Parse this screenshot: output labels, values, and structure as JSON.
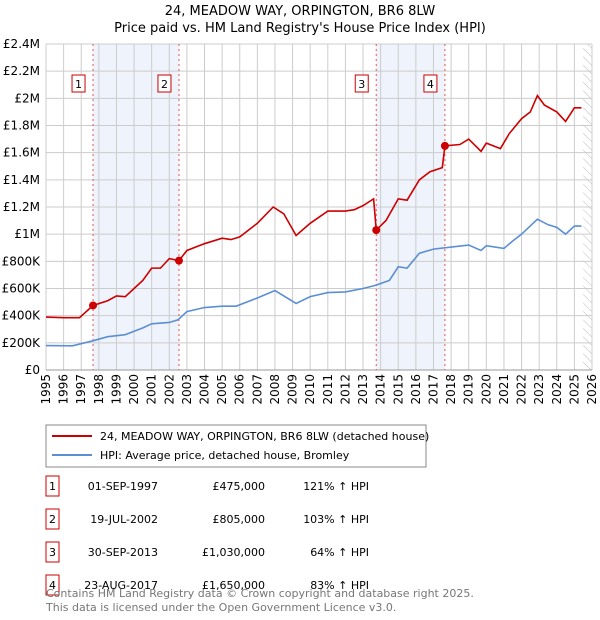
{
  "chart_data": {
    "type": "line",
    "title": "24, MEADOW WAY, ORPINGTON, BR6 8LW",
    "subtitle": "Price paid vs. HM Land Registry's House Price Index (HPI)",
    "xlim": [
      1995,
      2026
    ],
    "ylim": [
      0,
      2400000
    ],
    "x_ticks": [
      "1995",
      "1996",
      "1997",
      "1998",
      "1999",
      "2000",
      "2001",
      "2002",
      "2003",
      "2004",
      "2005",
      "2006",
      "2007",
      "2008",
      "2009",
      "2010",
      "2011",
      "2012",
      "2013",
      "2014",
      "2015",
      "2016",
      "2017",
      "2018",
      "2019",
      "2020",
      "2021",
      "2022",
      "2023",
      "2024",
      "2025",
      "2026"
    ],
    "y_ticks": [
      {
        "v": 0,
        "label": "£0"
      },
      {
        "v": 200000,
        "label": "£200K"
      },
      {
        "v": 400000,
        "label": "£400K"
      },
      {
        "v": 600000,
        "label": "£600K"
      },
      {
        "v": 800000,
        "label": "£800K"
      },
      {
        "v": 1000000,
        "label": "£1M"
      },
      {
        "v": 1200000,
        "label": "£1.2M"
      },
      {
        "v": 1400000,
        "label": "£1.4M"
      },
      {
        "v": 1600000,
        "label": "£1.6M"
      },
      {
        "v": 1800000,
        "label": "£1.8M"
      },
      {
        "v": 2000000,
        "label": "£2M"
      },
      {
        "v": 2200000,
        "label": "£2.2M"
      },
      {
        "v": 2400000,
        "label": "£2.4M"
      }
    ],
    "grid": true,
    "forecast_start": 2025.5,
    "shaded_ranges": [
      [
        1997.67,
        2002.55
      ],
      [
        2013.75,
        2017.65
      ]
    ],
    "series": [
      {
        "name": "24, MEADOW WAY, ORPINGTON, BR6 8LW (detached house)",
        "color": "#cc0000",
        "points": [
          [
            1995,
            390000
          ],
          [
            1996,
            385000
          ],
          [
            1996.9,
            385000
          ],
          [
            1997.67,
            475000
          ],
          [
            1998.5,
            510000
          ],
          [
            1999,
            545000
          ],
          [
            1999.5,
            540000
          ],
          [
            2000,
            600000
          ],
          [
            2000.5,
            660000
          ],
          [
            2001,
            750000
          ],
          [
            2001.5,
            750000
          ],
          [
            2002,
            820000
          ],
          [
            2002.55,
            805000
          ],
          [
            2003,
            880000
          ],
          [
            2004,
            930000
          ],
          [
            2005,
            970000
          ],
          [
            2005.5,
            960000
          ],
          [
            2006,
            980000
          ],
          [
            2007,
            1080000
          ],
          [
            2007.9,
            1200000
          ],
          [
            2008.5,
            1150000
          ],
          [
            2009.2,
            990000
          ],
          [
            2010,
            1080000
          ],
          [
            2011,
            1170000
          ],
          [
            2012,
            1170000
          ],
          [
            2012.5,
            1180000
          ],
          [
            2013,
            1210000
          ],
          [
            2013.6,
            1260000
          ],
          [
            2013.75,
            1030000
          ],
          [
            2014.3,
            1100000
          ],
          [
            2015,
            1260000
          ],
          [
            2015.5,
            1250000
          ],
          [
            2016.2,
            1400000
          ],
          [
            2016.8,
            1460000
          ],
          [
            2017.5,
            1490000
          ],
          [
            2017.65,
            1650000
          ],
          [
            2018.5,
            1660000
          ],
          [
            2019,
            1700000
          ],
          [
            2019.7,
            1610000
          ],
          [
            2020,
            1670000
          ],
          [
            2020.8,
            1630000
          ],
          [
            2021.3,
            1740000
          ],
          [
            2022,
            1850000
          ],
          [
            2022.5,
            1900000
          ],
          [
            2022.9,
            2020000
          ],
          [
            2023.3,
            1950000
          ],
          [
            2024,
            1900000
          ],
          [
            2024.5,
            1830000
          ],
          [
            2025,
            1930000
          ],
          [
            2025.4,
            1930000
          ]
        ]
      },
      {
        "name": "HPI: Average price, detached house, Bromley",
        "color": "#5b8fd4",
        "points": [
          [
            1995,
            180000
          ],
          [
            1996.5,
            178000
          ],
          [
            1997.67,
            215000
          ],
          [
            1998.5,
            245000
          ],
          [
            1999.5,
            260000
          ],
          [
            2000.5,
            310000
          ],
          [
            2001,
            340000
          ],
          [
            2002,
            350000
          ],
          [
            2002.5,
            370000
          ],
          [
            2003,
            430000
          ],
          [
            2004,
            460000
          ],
          [
            2005,
            470000
          ],
          [
            2005.8,
            470000
          ],
          [
            2007,
            530000
          ],
          [
            2008,
            585000
          ],
          [
            2009.2,
            490000
          ],
          [
            2010,
            540000
          ],
          [
            2011,
            570000
          ],
          [
            2012,
            575000
          ],
          [
            2013,
            600000
          ],
          [
            2013.75,
            625000
          ],
          [
            2014.5,
            660000
          ],
          [
            2015,
            760000
          ],
          [
            2015.5,
            750000
          ],
          [
            2016.2,
            860000
          ],
          [
            2017,
            890000
          ],
          [
            2018,
            905000
          ],
          [
            2019,
            920000
          ],
          [
            2019.7,
            880000
          ],
          [
            2020,
            915000
          ],
          [
            2021,
            895000
          ],
          [
            2021.5,
            950000
          ],
          [
            2022,
            1000000
          ],
          [
            2022.9,
            1110000
          ],
          [
            2023.5,
            1070000
          ],
          [
            2024,
            1050000
          ],
          [
            2024.5,
            1000000
          ],
          [
            2025,
            1060000
          ],
          [
            2025.4,
            1060000
          ]
        ]
      }
    ],
    "sales": [
      {
        "n": "1",
        "x": 1997.67,
        "price": 475000,
        "date": "01-SEP-1997",
        "price_label": "£475,000",
        "hpi": "121% ↑ HPI"
      },
      {
        "n": "2",
        "x": 2002.55,
        "price": 805000,
        "date": "19-JUL-2002",
        "price_label": "£805,000",
        "hpi": "103% ↑ HPI"
      },
      {
        "n": "3",
        "x": 2013.75,
        "price": 1030000,
        "date": "30-SEP-2013",
        "price_label": "£1,030,000",
        "hpi": "64% ↑ HPI"
      },
      {
        "n": "4",
        "x": 2017.65,
        "price": 1650000,
        "date": "23-AUG-2017",
        "price_label": "£1,650,000",
        "hpi": "83% ↑ HPI"
      }
    ],
    "legend_placement": "below"
  },
  "footer": {
    "line1": "Contains HM Land Registry data © Crown copyright and database right 2025.",
    "line2": "This data is licensed under the Open Government Licence v3.0."
  }
}
